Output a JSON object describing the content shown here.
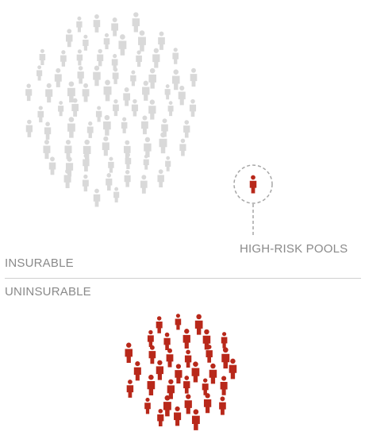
{
  "labels": {
    "high_risk_pools": "HIGH-RISK POOLS",
    "insurable": "INSURABLE",
    "uninsurable": "UNINSURABLE"
  },
  "icons": {
    "person": "person-icon"
  },
  "colors": {
    "insurable_person": "#d9d9d9",
    "uninsurable_person": "#b8281a",
    "label_text": "#8a8a8a",
    "divider": "#cfcfcf",
    "dashed_ring": "#a6a6a6"
  }
}
